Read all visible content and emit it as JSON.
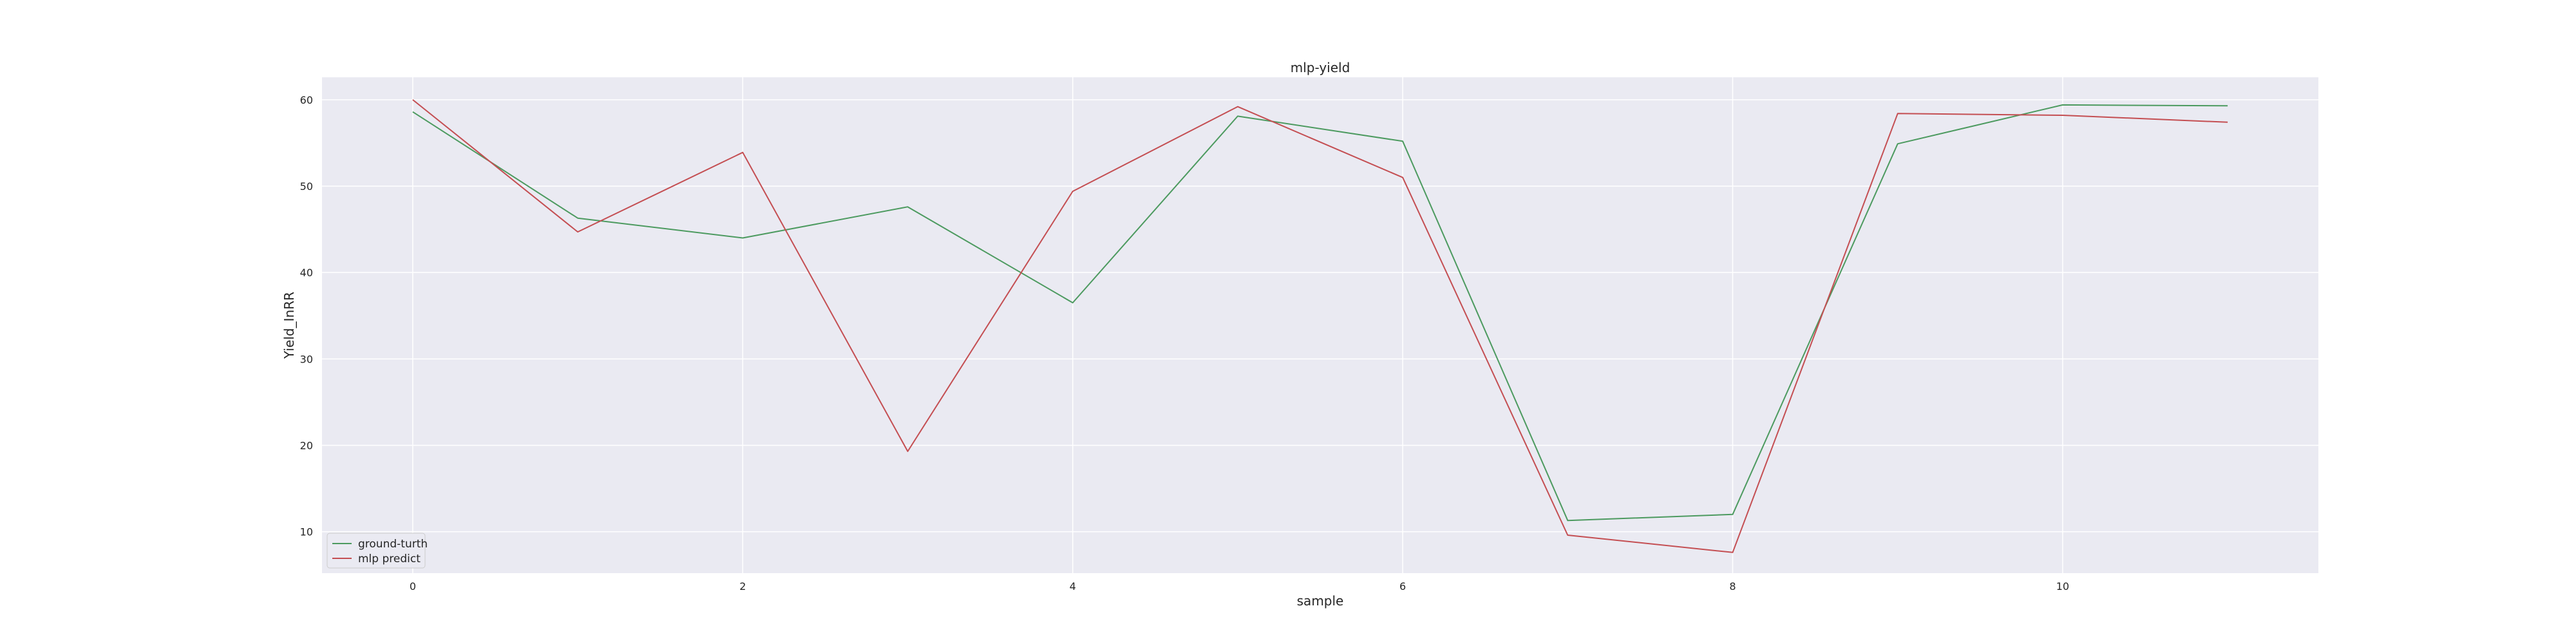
{
  "chart_data": {
    "type": "line",
    "title": "mlp-yield",
    "xlabel": "sample",
    "ylabel": "Yield_InRR",
    "x": [
      0,
      1,
      2,
      3,
      4,
      5,
      6,
      7,
      8,
      9,
      10,
      11
    ],
    "xlim": [
      -0.55,
      11.55
    ],
    "ylim": [
      5.2,
      62.6
    ],
    "xticks": [
      0,
      2,
      4,
      6,
      8,
      10
    ],
    "yticks": [
      10,
      20,
      30,
      40,
      50,
      60
    ],
    "grid": true,
    "legend_position": "lower-left",
    "background_color": "#eaeaf2",
    "series": [
      {
        "name": "ground-turth",
        "color": "#4c9a5f",
        "values": [
          58.6,
          46.3,
          44.0,
          47.6,
          36.5,
          58.1,
          55.2,
          11.3,
          12.0,
          54.9,
          59.4,
          59.3
        ]
      },
      {
        "name": "mlp predict",
        "color": "#c44e52",
        "values": [
          60.0,
          44.7,
          53.9,
          19.3,
          49.4,
          59.2,
          51.0,
          9.6,
          7.6,
          58.4,
          58.2,
          57.4
        ]
      }
    ]
  }
}
